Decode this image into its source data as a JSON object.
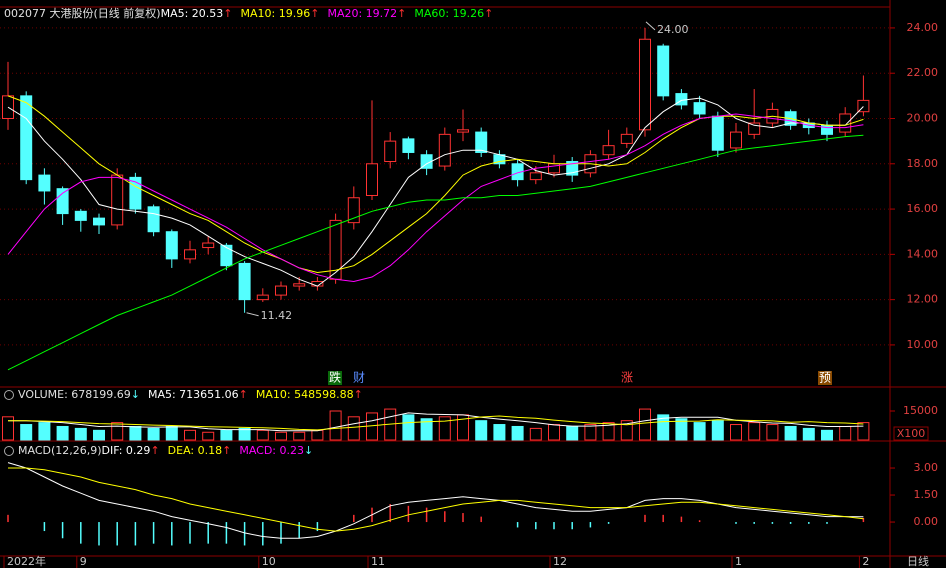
{
  "chart_data": [
    {
      "type": "candlestick",
      "title": "002077 大港股份(日线 前复权)",
      "categories": [
        "2022年",
        null,
        null,
        null,
        "9",
        null,
        null,
        null,
        null,
        null,
        null,
        null,
        null,
        null,
        "10",
        null,
        null,
        null,
        null,
        null,
        "11",
        null,
        null,
        null,
        null,
        null,
        null,
        null,
        null,
        null,
        "12",
        null,
        null,
        null,
        null,
        null,
        null,
        null,
        null,
        null,
        "1",
        null,
        null,
        null,
        null,
        null,
        null,
        "2"
      ],
      "open": [
        20.0,
        21.0,
        17.5,
        16.9,
        15.9,
        15.6,
        15.3,
        17.4,
        16.1,
        15.0,
        13.8,
        14.3,
        14.4,
        13.6,
        12.0,
        12.2,
        12.6,
        12.6,
        12.9,
        15.4,
        16.6,
        18.1,
        19.1,
        18.4,
        17.9,
        19.4,
        19.4,
        18.4,
        18.0,
        17.3,
        17.6,
        18.1,
        17.6,
        18.4,
        18.9,
        19.5,
        23.2,
        21.1,
        20.7,
        20.1,
        18.7,
        19.3,
        19.8,
        20.3,
        19.8,
        19.7,
        19.4,
        20.3
      ],
      "high": [
        22.5,
        21.2,
        17.8,
        17.0,
        16.0,
        15.8,
        17.8,
        17.6,
        16.2,
        15.1,
        14.6,
        14.8,
        14.5,
        13.7,
        12.5,
        12.8,
        13.0,
        13.0,
        15.8,
        17.0,
        20.8,
        19.4,
        19.2,
        18.6,
        19.6,
        20.4,
        19.6,
        18.6,
        18.2,
        17.9,
        18.4,
        18.3,
        18.6,
        19.5,
        19.6,
        24.0,
        23.3,
        21.3,
        21.0,
        20.3,
        19.8,
        21.3,
        20.7,
        20.4,
        20.0,
        19.9,
        20.5,
        21.9
      ],
      "low": [
        19.5,
        17.1,
        16.2,
        15.3,
        15.0,
        14.9,
        15.1,
        15.8,
        14.8,
        13.4,
        13.6,
        14.0,
        13.3,
        11.42,
        11.9,
        12.0,
        12.4,
        12.4,
        12.7,
        15.1,
        16.4,
        17.8,
        18.2,
        17.5,
        17.7,
        19.0,
        18.3,
        17.8,
        17.0,
        17.1,
        17.4,
        17.2,
        17.4,
        18.2,
        18.7,
        19.2,
        20.8,
        20.4,
        20.0,
        18.3,
        18.5,
        19.1,
        19.6,
        19.5,
        19.3,
        19.0,
        19.2,
        20.1
      ],
      "close": [
        21.0,
        17.3,
        16.8,
        15.8,
        15.5,
        15.3,
        17.5,
        16.0,
        15.0,
        13.8,
        14.2,
        14.5,
        13.5,
        12.0,
        12.2,
        12.6,
        12.7,
        12.8,
        15.5,
        16.5,
        18.0,
        19.0,
        18.5,
        17.8,
        19.3,
        19.5,
        18.5,
        18.0,
        17.3,
        17.6,
        18.0,
        17.5,
        18.4,
        18.8,
        19.3,
        23.5,
        21.0,
        20.6,
        20.2,
        18.6,
        19.4,
        19.8,
        20.4,
        19.7,
        19.6,
        19.3,
        20.2,
        20.8
      ],
      "up_color": "#ff3232",
      "down_color": "#54ffff",
      "series": [
        {
          "name": "MA5",
          "label": "MA5: 20.53",
          "arrow": "↑",
          "color": "#ffffff",
          "values": [
            20.5,
            20.0,
            19.0,
            18.2,
            17.3,
            16.2,
            16.0,
            15.9,
            15.8,
            15.6,
            15.3,
            14.8,
            14.3,
            13.9,
            13.6,
            13.3,
            12.9,
            12.6,
            13.2,
            13.9,
            15.0,
            16.2,
            17.4,
            18.0,
            18.4,
            18.6,
            18.6,
            18.4,
            18.2,
            17.7,
            17.5,
            17.6,
            17.8,
            18.0,
            18.4,
            19.6,
            20.3,
            20.8,
            20.9,
            20.6,
            20.0,
            19.7,
            19.6,
            19.8,
            19.8,
            19.7,
            19.7,
            20.53
          ]
        },
        {
          "name": "MA10",
          "label": "MA10: 19.96",
          "arrow": "↑",
          "color": "#ffff00",
          "values": [
            21.0,
            20.7,
            20.1,
            19.4,
            18.7,
            18.0,
            17.5,
            17.0,
            16.6,
            16.2,
            15.8,
            15.5,
            15.0,
            14.5,
            14.1,
            13.8,
            13.4,
            13.2,
            13.3,
            13.5,
            14.0,
            14.6,
            15.2,
            15.8,
            16.6,
            17.5,
            17.9,
            18.1,
            18.2,
            18.1,
            18.0,
            18.0,
            18.0,
            17.9,
            18.0,
            18.5,
            19.1,
            19.6,
            20.0,
            20.1,
            20.1,
            20.0,
            20.1,
            20.0,
            19.8,
            19.7,
            19.7,
            19.96
          ]
        },
        {
          "name": "MA20",
          "label": "MA20: 19.72",
          "arrow": "↑",
          "color": "#ff00ff",
          "values": [
            14.0,
            15.0,
            16.0,
            16.7,
            17.2,
            17.4,
            17.4,
            17.2,
            16.8,
            16.4,
            16.0,
            15.6,
            15.2,
            14.7,
            14.2,
            13.8,
            13.4,
            13.1,
            12.9,
            12.8,
            13.0,
            13.5,
            14.2,
            15.0,
            15.7,
            16.4,
            17.0,
            17.3,
            17.6,
            17.8,
            17.9,
            18.0,
            18.1,
            18.2,
            18.4,
            18.8,
            19.3,
            19.7,
            20.0,
            20.1,
            20.2,
            20.1,
            20.0,
            19.9,
            19.7,
            19.6,
            19.6,
            19.72
          ]
        },
        {
          "name": "MA60",
          "label": "MA60: 19.26",
          "arrow": "↑",
          "color": "#00ff00",
          "values": [
            8.9,
            9.3,
            9.7,
            10.1,
            10.5,
            10.9,
            11.3,
            11.6,
            11.9,
            12.2,
            12.6,
            13.0,
            13.4,
            13.8,
            14.1,
            14.4,
            14.7,
            15.0,
            15.3,
            15.6,
            15.9,
            16.1,
            16.3,
            16.4,
            16.4,
            16.5,
            16.5,
            16.6,
            16.6,
            16.7,
            16.8,
            16.9,
            17.0,
            17.2,
            17.4,
            17.6,
            17.8,
            18.0,
            18.2,
            18.4,
            18.6,
            18.7,
            18.8,
            18.9,
            19.0,
            19.1,
            19.2,
            19.26
          ]
        }
      ],
      "ylim": [
        8.23,
        24.88
      ],
      "yticks": [
        {
          "value": 10,
          "label": "10.00"
        },
        {
          "value": 12,
          "label": "12.00"
        },
        {
          "value": 14,
          "label": "14.00"
        },
        {
          "value": 16,
          "label": "16.00"
        },
        {
          "value": 18,
          "label": "18.00"
        },
        {
          "value": 20,
          "label": "20.00"
        },
        {
          "value": 22,
          "label": "22.00"
        },
        {
          "value": 24,
          "label": "24.00"
        }
      ],
      "grid": true,
      "high_label": {
        "value": 24.0,
        "label": "24.00"
      },
      "low_label": {
        "value": 11.42,
        "label": "11.42"
      },
      "events": [
        "跌",
        "财",
        "涨",
        "预"
      ],
      "period_label": "日线"
    },
    {
      "type": "bar",
      "title": "VOLUME: 678199.69",
      "arrow": "↓",
      "values": [
        12000,
        8000,
        9000,
        7000,
        6000,
        5000,
        9000,
        7000,
        6000,
        7000,
        5000,
        4000,
        5000,
        6000,
        5000,
        4000,
        4000,
        5000,
        15000,
        12000,
        14000,
        16000,
        13000,
        11000,
        12000,
        13000,
        10000,
        8000,
        7000,
        6000,
        8000,
        7000,
        8000,
        9000,
        10000,
        16000,
        13000,
        11000,
        9000,
        10000,
        8000,
        9000,
        8000,
        7000,
        6000,
        5000,
        7000,
        9000
      ],
      "series": [
        {
          "name": "MA5",
          "label": "MA5: 713651.06",
          "arrow": "↑",
          "color": "#ffffff",
          "values": [
            10000,
            10000,
            9500,
            9000,
            8000,
            7000,
            7200,
            6800,
            6600,
            6800,
            6800,
            5800,
            5400,
            5400,
            5400,
            4800,
            4800,
            4800,
            6600,
            8400,
            10000,
            12000,
            14000,
            13400,
            13200,
            13000,
            11800,
            10800,
            10000,
            9000,
            7800,
            7200,
            7200,
            7600,
            8400,
            10000,
            11200,
            11800,
            11800,
            11800,
            10200,
            9400,
            8800,
            8600,
            7600,
            7000,
            7000,
            7200
          ]
        },
        {
          "name": "MA10",
          "label": "MA10: 548598.88",
          "arrow": "↑",
          "color": "#ffff00",
          "values": [
            10000,
            10000,
            9800,
            9500,
            9000,
            8500,
            8300,
            8000,
            7700,
            7500,
            7200,
            6900,
            6700,
            6500,
            6300,
            6000,
            5500,
            5200,
            6000,
            6600,
            7400,
            8200,
            9000,
            9400,
            9800,
            10800,
            11900,
            12400,
            11700,
            11200,
            10300,
            9500,
            8800,
            8400,
            7900,
            8800,
            9500,
            9700,
            9800,
            10500,
            10200,
            10100,
            9900,
            9200,
            9500,
            9000,
            8800,
            8300
          ]
        }
      ],
      "ylim": [
        0,
        26900
      ],
      "yticks": [
        15000
      ],
      "unit": "X100"
    },
    {
      "type": "macd",
      "title": "MACD(12,26,9)",
      "series": [
        {
          "name": "DIF",
          "label": "DIF: 0.29",
          "arrow": "↑",
          "color": "#ffffff",
          "values": [
            3.3,
            3.0,
            2.5,
            2.0,
            1.6,
            1.2,
            1.0,
            0.8,
            0.6,
            0.3,
            0.1,
            -0.1,
            -0.3,
            -0.6,
            -0.8,
            -0.9,
            -0.9,
            -0.8,
            -0.5,
            -0.1,
            0.4,
            0.9,
            1.1,
            1.2,
            1.3,
            1.4,
            1.3,
            1.2,
            1.0,
            0.8,
            0.7,
            0.6,
            0.6,
            0.7,
            0.8,
            1.2,
            1.3,
            1.3,
            1.2,
            1.0,
            0.8,
            0.7,
            0.6,
            0.5,
            0.4,
            0.3,
            0.3,
            0.29
          ]
        },
        {
          "name": "DEA",
          "label": "DEA: 0.18",
          "arrow": "↑",
          "color": "#ffff00",
          "values": [
            3.0,
            3.0,
            2.9,
            2.7,
            2.5,
            2.2,
            2.0,
            1.8,
            1.5,
            1.3,
            1.0,
            0.8,
            0.6,
            0.4,
            0.2,
            0.0,
            -0.2,
            -0.4,
            -0.5,
            -0.4,
            -0.2,
            0.1,
            0.4,
            0.6,
            0.8,
            1.0,
            1.1,
            1.2,
            1.2,
            1.1,
            1.0,
            0.9,
            0.8,
            0.8,
            0.8,
            0.9,
            1.0,
            1.1,
            1.1,
            1.0,
            0.9,
            0.8,
            0.7,
            0.6,
            0.5,
            0.4,
            0.3,
            0.18
          ]
        }
      ],
      "histogram": {
        "name": "MACD",
        "label": "MACD: 0.23",
        "arrow": "↓",
        "color": "#ff00ff",
        "up_color": "#ff3232",
        "down_color": "#54ffff",
        "values": [
          0.4,
          0,
          -0.5,
          -0.9,
          -1.2,
          -1.3,
          -1.3,
          -1.3,
          -1.2,
          -1.3,
          -1.2,
          -1.2,
          -1.2,
          -1.3,
          -1.3,
          -1.2,
          -0.9,
          -0.5,
          0,
          0.4,
          0.8,
          1.0,
          0.9,
          0.8,
          0.6,
          0.5,
          0.3,
          0,
          -0.3,
          -0.4,
          -0.4,
          -0.4,
          -0.3,
          -0.1,
          0,
          0.4,
          0.4,
          0.3,
          0.1,
          0,
          -0.1,
          -0.1,
          -0.1,
          -0.1,
          -0.1,
          -0.1,
          0,
          0.23
        ]
      },
      "ylim": [
        -1.83,
        4.39
      ],
      "yticks": [
        {
          "value": 0,
          "label": "0.00"
        },
        {
          "value": 1.5,
          "label": "1.50"
        },
        {
          "value": 3,
          "label": "3.00"
        }
      ]
    }
  ]
}
